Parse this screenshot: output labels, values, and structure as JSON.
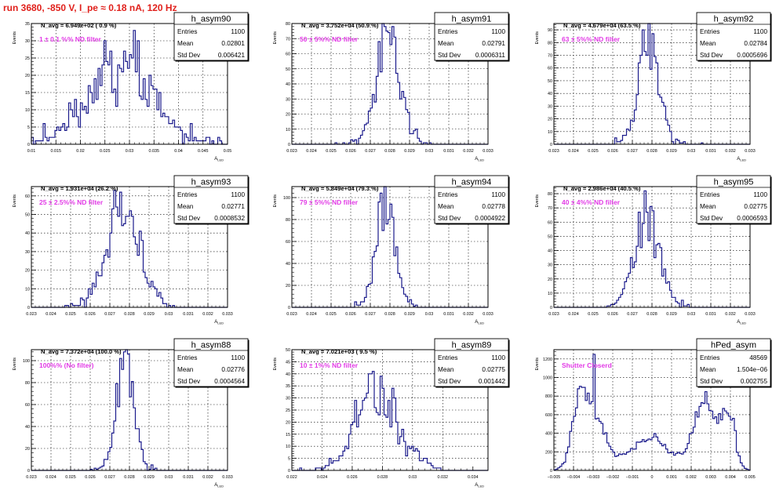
{
  "page_title": "run 3680,  -850 V, I_pe ≈ 0.18 nA, 120 Hz",
  "colors": {
    "histogram": "#1c1c8c",
    "annotation": "#e23ae6",
    "title": "#e0201b",
    "frame": "#000000"
  },
  "stat_labels": {
    "entries": "Entries",
    "mean": "Mean",
    "stddev": "Std Dev"
  },
  "chart_data": [
    {
      "type": "histogram",
      "name": "h_asym90",
      "nline": "N_avg = 6.949e+02 ( 0.9 %)",
      "annotation": "1 ± 0.1 %% ND filter",
      "xlabel": "A_LED",
      "ylabel": "Events",
      "xlim": [
        0.01,
        0.05
      ],
      "ylim": [
        0,
        35
      ],
      "xticks": [
        0.01,
        0.015,
        0.02,
        0.025,
        0.03,
        0.035,
        0.04,
        0.045,
        0.05
      ],
      "xticklabels": [
        "0.01",
        "0.015",
        "0.02",
        "0.025",
        "0.03",
        "0.035",
        "0.04",
        "0.045",
        "0.05"
      ],
      "yticks": [
        0,
        5,
        10,
        15,
        20,
        25,
        30,
        35
      ],
      "entries": "1100",
      "mean": "0.02801",
      "stddev": "0.006421",
      "profile": {
        "mean": 0.02801,
        "sigma": 0.006421,
        "peak": 24,
        "noise": 0.35,
        "jag": 6,
        "bins": 100
      }
    },
    {
      "type": "histogram",
      "name": "h_asym91",
      "nline": "N_avg = 3.752e+04 (50.9 %)",
      "annotation": "50 ± 5%% ND filter",
      "xlabel": "A_LED",
      "ylabel": "Events",
      "xlim": [
        0.023,
        0.033
      ],
      "ylim": [
        0,
        80
      ],
      "xticks": [
        0.023,
        0.024,
        0.025,
        0.026,
        0.027,
        0.028,
        0.029,
        0.03,
        0.031,
        0.032,
        0.033
      ],
      "xticklabels": [
        "0.023",
        "0.024",
        "0.025",
        "0.026",
        "0.027",
        "0.028",
        "0.029",
        "0.03",
        "0.031",
        "0.032",
        "0.033"
      ],
      "yticks": [
        0,
        10,
        20,
        30,
        40,
        50,
        60,
        70,
        80
      ],
      "entries": "1100",
      "mean": "0.02791",
      "stddev": "0.0006311",
      "profile": {
        "mean": 0.02791,
        "sigma": 0.0006311,
        "peak": 68,
        "noise": 0.3,
        "jag": 5,
        "bins": 100
      }
    },
    {
      "type": "histogram",
      "name": "h_asym92",
      "nline": "N_avg = 4.679e+04 (63.5 %)",
      "annotation": "63 ± 5%% ND filter",
      "xlabel": "A_LED",
      "ylabel": "Events",
      "xlim": [
        0.023,
        0.033
      ],
      "ylim": [
        0,
        95
      ],
      "xticks": [
        0.023,
        0.024,
        0.025,
        0.026,
        0.027,
        0.028,
        0.029,
        0.03,
        0.031,
        0.032,
        0.033
      ],
      "xticklabels": [
        "0.023",
        "0.024",
        "0.025",
        "0.026",
        "0.027",
        "0.028",
        "0.029",
        "0.03",
        "0.031",
        "0.032",
        "0.033"
      ],
      "yticks": [
        0,
        10,
        20,
        30,
        40,
        50,
        60,
        70,
        80,
        90
      ],
      "entries": "1100",
      "mean": "0.02784",
      "stddev": "0.0005696",
      "profile": {
        "mean": 0.02784,
        "sigma": 0.0005696,
        "peak": 78,
        "noise": 0.3,
        "jag": 5,
        "bins": 100
      }
    },
    {
      "type": "histogram",
      "name": "h_asym93",
      "nline": "N_avg = 1.931e+04 (26.2 %)",
      "annotation": "25 ± 2.5%% ND filter",
      "xlabel": "A_LED",
      "ylabel": "Events",
      "xlim": [
        0.023,
        0.033
      ],
      "ylim": [
        0,
        65
      ],
      "xticks": [
        0.023,
        0.024,
        0.025,
        0.026,
        0.027,
        0.028,
        0.029,
        0.03,
        0.031,
        0.032,
        0.033
      ],
      "xticklabels": [
        "0.023",
        "0.024",
        "0.025",
        "0.026",
        "0.027",
        "0.028",
        "0.029",
        "0.03",
        "0.031",
        "0.032",
        "0.033"
      ],
      "yticks": [
        0,
        10,
        20,
        30,
        40,
        50,
        60
      ],
      "entries": "1100",
      "mean": "0.02771",
      "stddev": "0.0008532",
      "profile": {
        "mean": 0.02771,
        "sigma": 0.0008532,
        "peak": 52,
        "noise": 0.3,
        "jag": 5,
        "bins": 100
      }
    },
    {
      "type": "histogram",
      "name": "h_asym94",
      "nline": "N_avg = 5.849e+04 (79.3 %)",
      "annotation": "79 ± 5%% ND filter",
      "xlabel": "A_LED",
      "ylabel": "Events",
      "xlim": [
        0.023,
        0.033
      ],
      "ylim": [
        0,
        110
      ],
      "xticks": [
        0.023,
        0.024,
        0.025,
        0.026,
        0.027,
        0.028,
        0.029,
        0.03,
        0.031,
        0.032,
        0.033
      ],
      "xticklabels": [
        "0.023",
        "0.024",
        "0.025",
        "0.026",
        "0.027",
        "0.028",
        "0.029",
        "0.03",
        "0.031",
        "0.032",
        "0.033"
      ],
      "yticks": [
        0,
        20,
        40,
        60,
        80,
        100
      ],
      "entries": "1100",
      "mean": "0.02778",
      "stddev": "0.0004922",
      "profile": {
        "mean": 0.02778,
        "sigma": 0.0004922,
        "peak": 90,
        "noise": 0.3,
        "jag": 6,
        "bins": 100
      }
    },
    {
      "type": "histogram",
      "name": "h_asym95",
      "nline": "N_avg = 2.986e+04 (40.5 %)",
      "annotation": "40 ± 4%% ND filter",
      "xlabel": "A_LED",
      "ylabel": "Events",
      "xlim": [
        0.023,
        0.033
      ],
      "ylim": [
        0,
        85
      ],
      "xticks": [
        0.023,
        0.024,
        0.025,
        0.026,
        0.027,
        0.028,
        0.029,
        0.03,
        0.031,
        0.032,
        0.033
      ],
      "xticklabels": [
        "0.023",
        "0.024",
        "0.025",
        "0.026",
        "0.027",
        "0.028",
        "0.029",
        "0.03",
        "0.031",
        "0.032",
        "0.033"
      ],
      "yticks": [
        0,
        10,
        20,
        30,
        40,
        50,
        60,
        70,
        80
      ],
      "entries": "1100",
      "mean": "0.02775",
      "stddev": "0.0006593",
      "profile": {
        "mean": 0.02775,
        "sigma": 0.0006593,
        "peak": 64,
        "noise": 0.3,
        "jag": 5,
        "bins": 100
      }
    },
    {
      "type": "histogram",
      "name": "h_asym88",
      "nline": "N_avg = 7.372e+04 (100.0 %)",
      "annotation": "100%% (No filter)",
      "xlabel": "A_LED",
      "ylabel": "Events",
      "xlim": [
        0.023,
        0.033
      ],
      "ylim": [
        0,
        110
      ],
      "xticks": [
        0.023,
        0.024,
        0.025,
        0.026,
        0.027,
        0.028,
        0.029,
        0.03,
        0.031,
        0.032,
        0.033
      ],
      "xticklabels": [
        "0.023",
        "0.024",
        "0.025",
        "0.026",
        "0.027",
        "0.028",
        "0.029",
        "0.03",
        "0.031",
        "0.032",
        "0.033"
      ],
      "yticks": [
        0,
        20,
        40,
        60,
        80,
        100
      ],
      "entries": "1100",
      "mean": "0.02776",
      "stddev": "0.0004564",
      "profile": {
        "mean": 0.02776,
        "sigma": 0.0004564,
        "peak": 92,
        "noise": 0.3,
        "jag": 6,
        "bins": 100
      }
    },
    {
      "type": "histogram",
      "name": "h_asym89",
      "nline": "N_avg = 7.021e+03 ( 9.5 %)",
      "annotation": "10 ± 1%% ND filter",
      "xlabel": "A_LED",
      "ylabel": "Events",
      "xlim": [
        0.022,
        0.035
      ],
      "ylim": [
        0,
        50
      ],
      "xticks": [
        0.022,
        0.024,
        0.026,
        0.028,
        0.03,
        0.032,
        0.034
      ],
      "xticklabels": [
        "0.022",
        "0.024",
        "0.026",
        "0.028",
        "0.03",
        "0.032",
        "0.034"
      ],
      "yticks": [
        0,
        5,
        10,
        15,
        20,
        25,
        30,
        35,
        40,
        45,
        50
      ],
      "entries": "1100",
      "mean": "0.02775",
      "stddev": "0.001442",
      "profile": {
        "mean": 0.02775,
        "sigma": 0.001442,
        "peak": 33,
        "noise": 0.35,
        "jag": 6,
        "bins": 100
      }
    },
    {
      "type": "histogram",
      "name": "hPed_asym",
      "nline": "",
      "annotation": "Shutter Closerd",
      "xlabel": "",
      "ylabel": "Events",
      "xlim": [
        -0.005,
        0.005
      ],
      "ylim": [
        0,
        1300
      ],
      "xticks": [
        -0.005,
        -0.004,
        -0.003,
        -0.002,
        -0.001,
        0,
        0.001,
        0.002,
        0.003,
        0.004,
        0.005
      ],
      "xticklabels": [
        "−0.005",
        "−0.004",
        "−0.003",
        "−0.002",
        "−0.001",
        "0",
        "0.001",
        "0.002",
        "0.003",
        "0.004",
        "0.005"
      ],
      "yticks": [
        0,
        200,
        400,
        600,
        800,
        1000,
        1200
      ],
      "entries": "48569",
      "mean": "1.504e−06",
      "stddev": "0.002755",
      "profile": {
        "components": [
          {
            "mean": -0.0036,
            "sigma": 0.00045,
            "amp": 680
          },
          {
            "mean": -0.0027,
            "sigma": 0.00035,
            "amp": 330
          },
          {
            "mean": -0.0001,
            "sigma": 0.0006,
            "amp": 220
          },
          {
            "mean": 0.0027,
            "sigma": 0.0005,
            "amp": 620
          },
          {
            "mean": 0.0039,
            "sigma": 0.00035,
            "amp": 480
          }
        ],
        "base": 150,
        "baseRange": [
          -0.0042,
          0.0043
        ],
        "spike": [
          -0.003,
          1250
        ],
        "noise": 0.12,
        "jag": 25,
        "bins": 100
      }
    }
  ]
}
